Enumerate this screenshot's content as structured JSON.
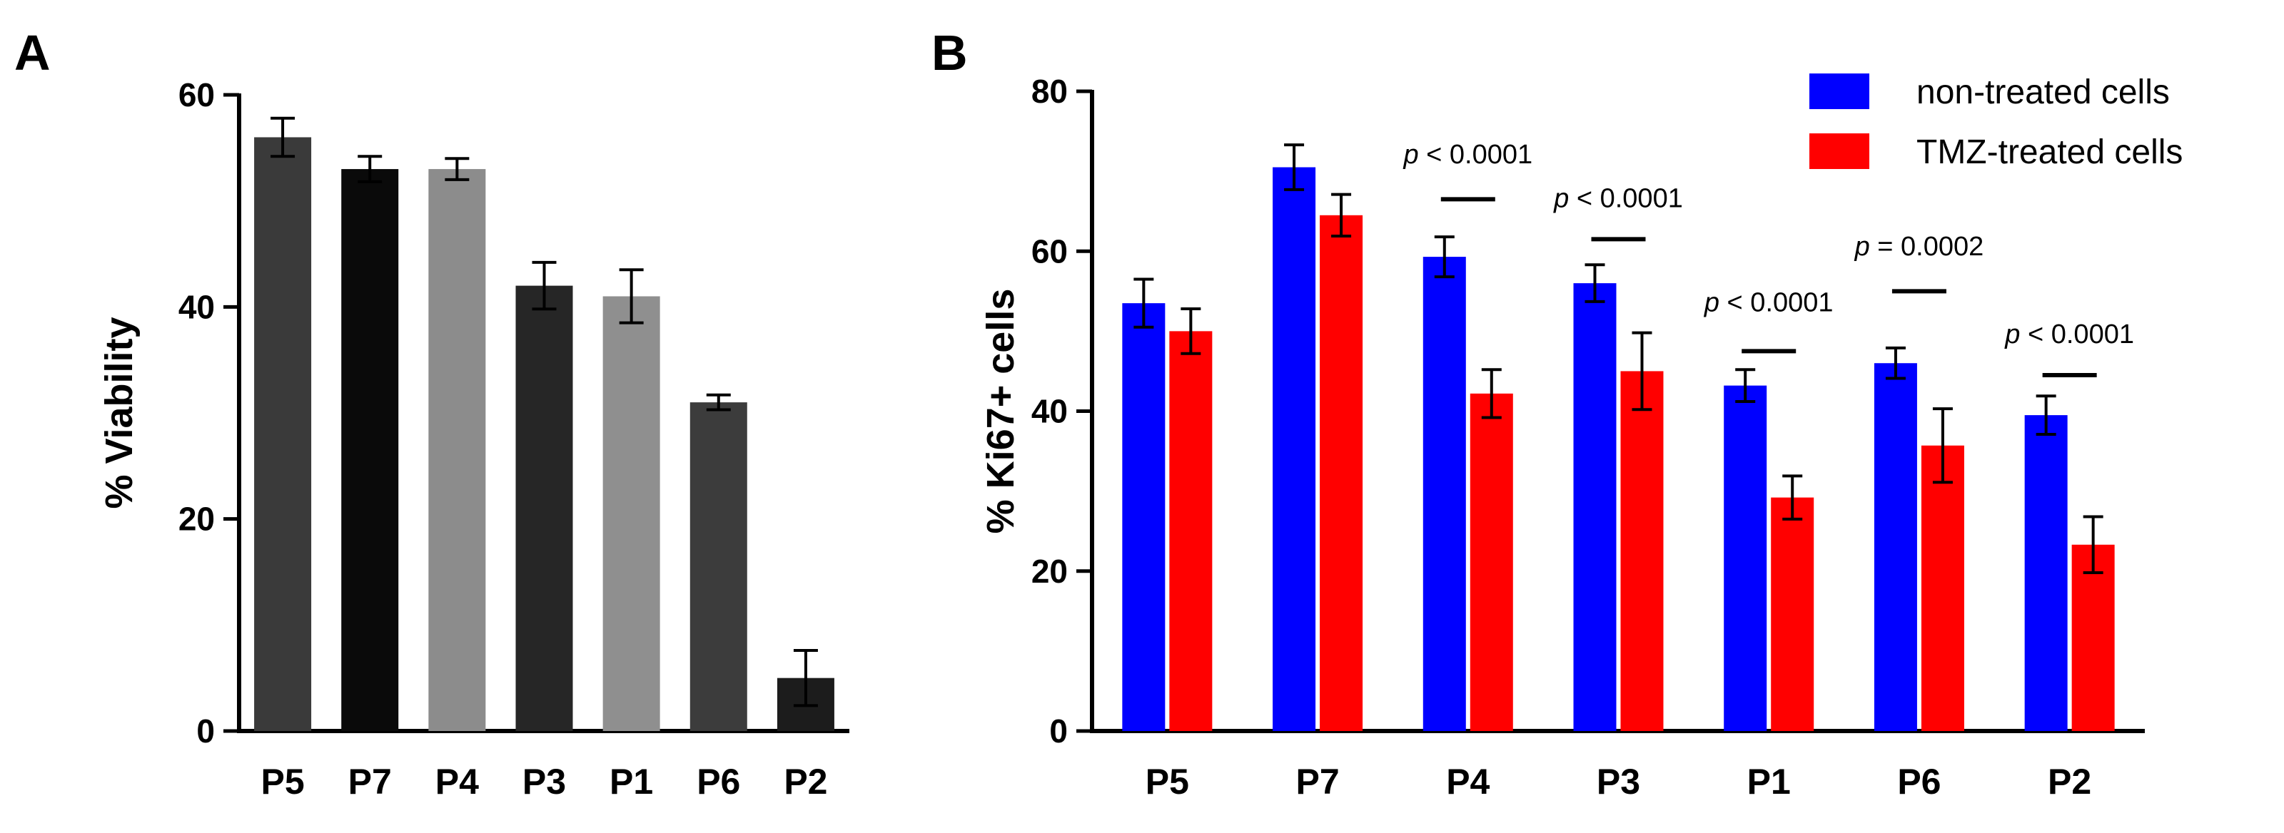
{
  "figure": {
    "panel_a_label": "A",
    "panel_b_label": "B"
  },
  "chart_data": [
    {
      "type": "bar",
      "panel": "A",
      "title": "",
      "xlabel": "",
      "ylabel": "% Viability",
      "ylim": [
        0,
        60
      ],
      "yticks": [
        0,
        20,
        40,
        60
      ],
      "grid": false,
      "categories": [
        "P5",
        "P7",
        "P4",
        "P3",
        "P1",
        "P6",
        "P2"
      ],
      "values": [
        56,
        53,
        53,
        42,
        41,
        31,
        5
      ],
      "errors": [
        1.8,
        1.2,
        1.0,
        2.2,
        2.5,
        0.7,
        2.6
      ],
      "bar_colors": [
        "#3a3a3a",
        "#0a0a0a",
        "#8c8c8c",
        "#262626",
        "#8f8f8f",
        "#3c3c3c",
        "#1c1c1c"
      ]
    },
    {
      "type": "bar",
      "panel": "B",
      "title": "",
      "xlabel": "",
      "ylabel": "% Ki67+ cells",
      "ylim": [
        0,
        80
      ],
      "yticks": [
        0,
        20,
        40,
        60,
        80
      ],
      "grid": false,
      "legend_position": "top-right",
      "categories": [
        "P5",
        "P7",
        "P4",
        "P3",
        "P1",
        "P6",
        "P2"
      ],
      "series": [
        {
          "name": "non-treated cells",
          "color": "#0000ff",
          "values": [
            53.5,
            70.5,
            59.3,
            56,
            43.2,
            46,
            39.5
          ],
          "errors": [
            3.0,
            2.8,
            2.5,
            2.3,
            2.0,
            1.9,
            2.4
          ]
        },
        {
          "name": "TMZ-treated cells",
          "color": "#ff0000",
          "values": [
            50,
            64.5,
            42.2,
            45,
            29.2,
            35.7,
            23.3
          ],
          "errors": [
            2.8,
            2.6,
            3.0,
            4.8,
            2.7,
            4.6,
            3.5
          ]
        }
      ],
      "annotations": [
        {
          "category": "P4",
          "p": "p",
          "rest": " < 0.0001",
          "label_value": 71,
          "bar_value": 66.5
        },
        {
          "category": "P3",
          "p": "p",
          "rest": " < 0.0001",
          "label_value": 65.5,
          "bar_value": 61.5
        },
        {
          "category": "P1",
          "p": "p",
          "rest": " < 0.0001",
          "label_value": 52.5,
          "bar_value": 47.5
        },
        {
          "category": "P6",
          "p": "p",
          "rest": " = 0.0002",
          "label_value": 59.5,
          "bar_value": 55
        },
        {
          "category": "P2",
          "p": "p",
          "rest": " < 0.0001",
          "label_value": 48.5,
          "bar_value": 44.5
        }
      ]
    }
  ]
}
